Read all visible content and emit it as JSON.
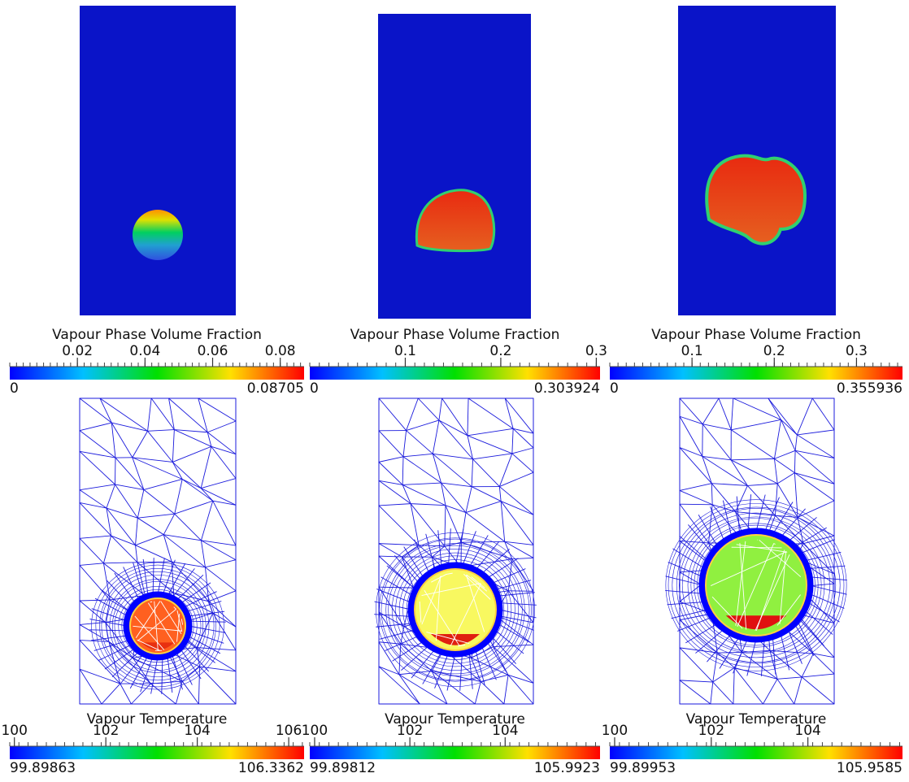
{
  "volume_fraction": [
    {
      "title": "Vapour Phase Volume Fraction",
      "min": 0,
      "max": 0.08705,
      "ticks": [
        0.02,
        0.04,
        0.06,
        0.08
      ]
    },
    {
      "title": "Vapour Phase Volume Fraction",
      "min": 0,
      "max": 0.303924,
      "ticks": [
        0.1,
        0.2,
        0.3
      ]
    },
    {
      "title": "Vapour Phase Volume Fraction",
      "min": 0,
      "max": 0.355936,
      "ticks": [
        0.1,
        0.2,
        0.3
      ]
    }
  ],
  "temperature": [
    {
      "title": "Vapour Temperature",
      "min": 99.89863,
      "max": 106.3362,
      "ticks": [
        100,
        102,
        104,
        106
      ]
    },
    {
      "title": "Vapour Temperature",
      "min": 99.89812,
      "max": 105.9923,
      "ticks": [
        100,
        102,
        104
      ]
    },
    {
      "title": "Vapour Temperature",
      "min": 99.89953,
      "max": 105.9585,
      "ticks": [
        100,
        102,
        104
      ]
    }
  ]
}
